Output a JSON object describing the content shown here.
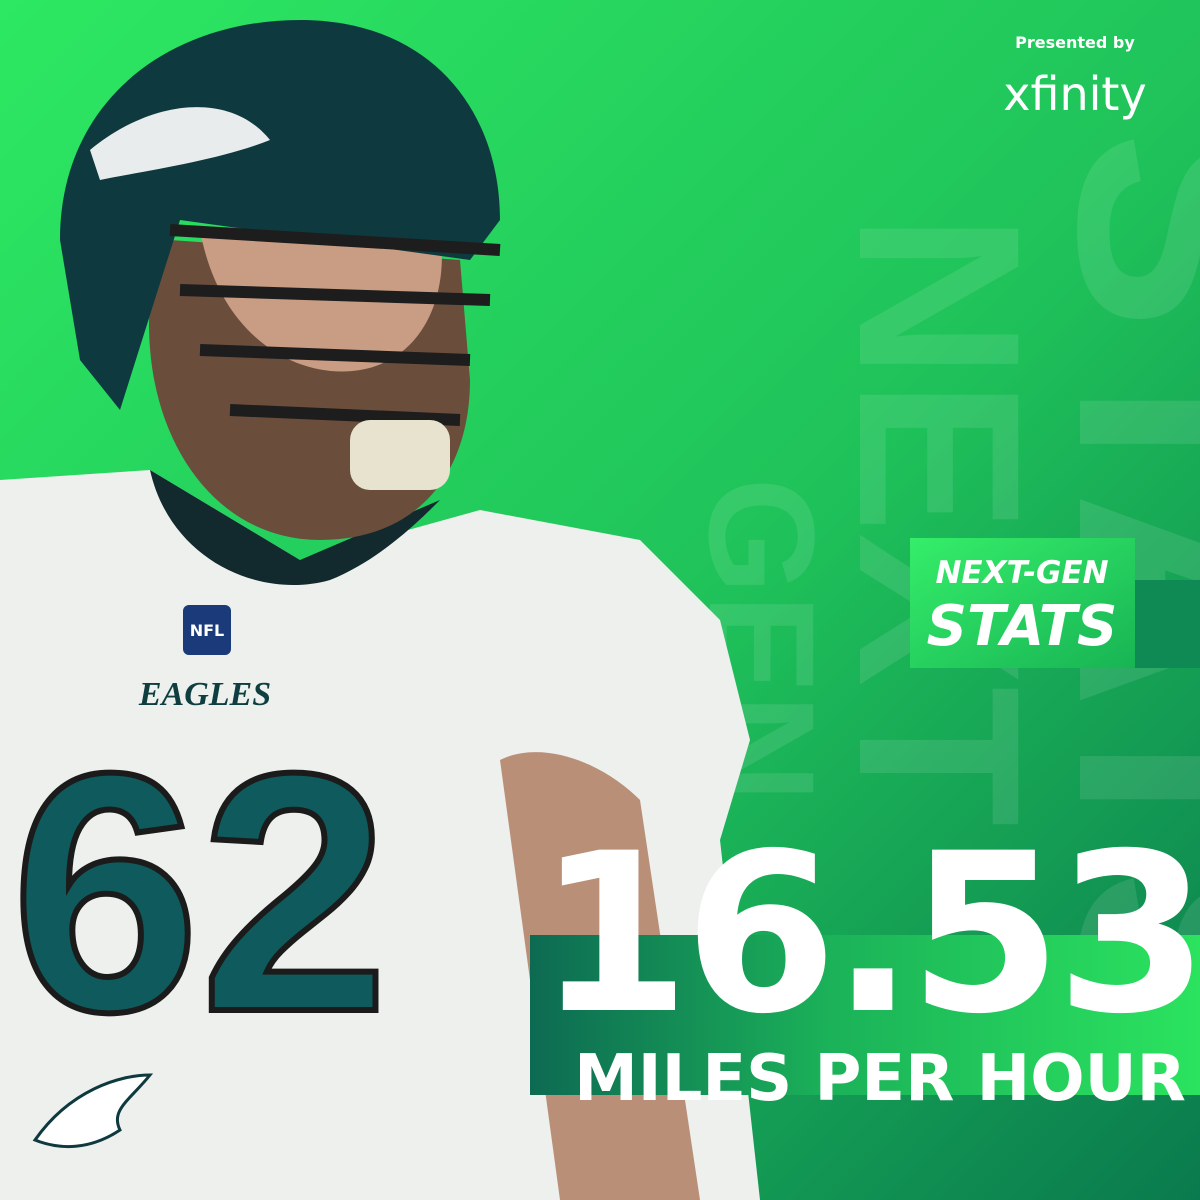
{
  "sponsor": {
    "presented_by": "Presented by",
    "brand": "xfinity"
  },
  "watermark": {
    "line_1": "GEN",
    "line_2": "NEXT",
    "line_3": "STATS"
  },
  "badge": {
    "line_1": "NEXT-GEN",
    "line_2": "STATS"
  },
  "stat": {
    "value": "16.53",
    "unit": "MILES PER HOUR"
  },
  "player": {
    "jersey_number": "62",
    "jersey_text": "EAGLES",
    "patch": "NFL"
  }
}
